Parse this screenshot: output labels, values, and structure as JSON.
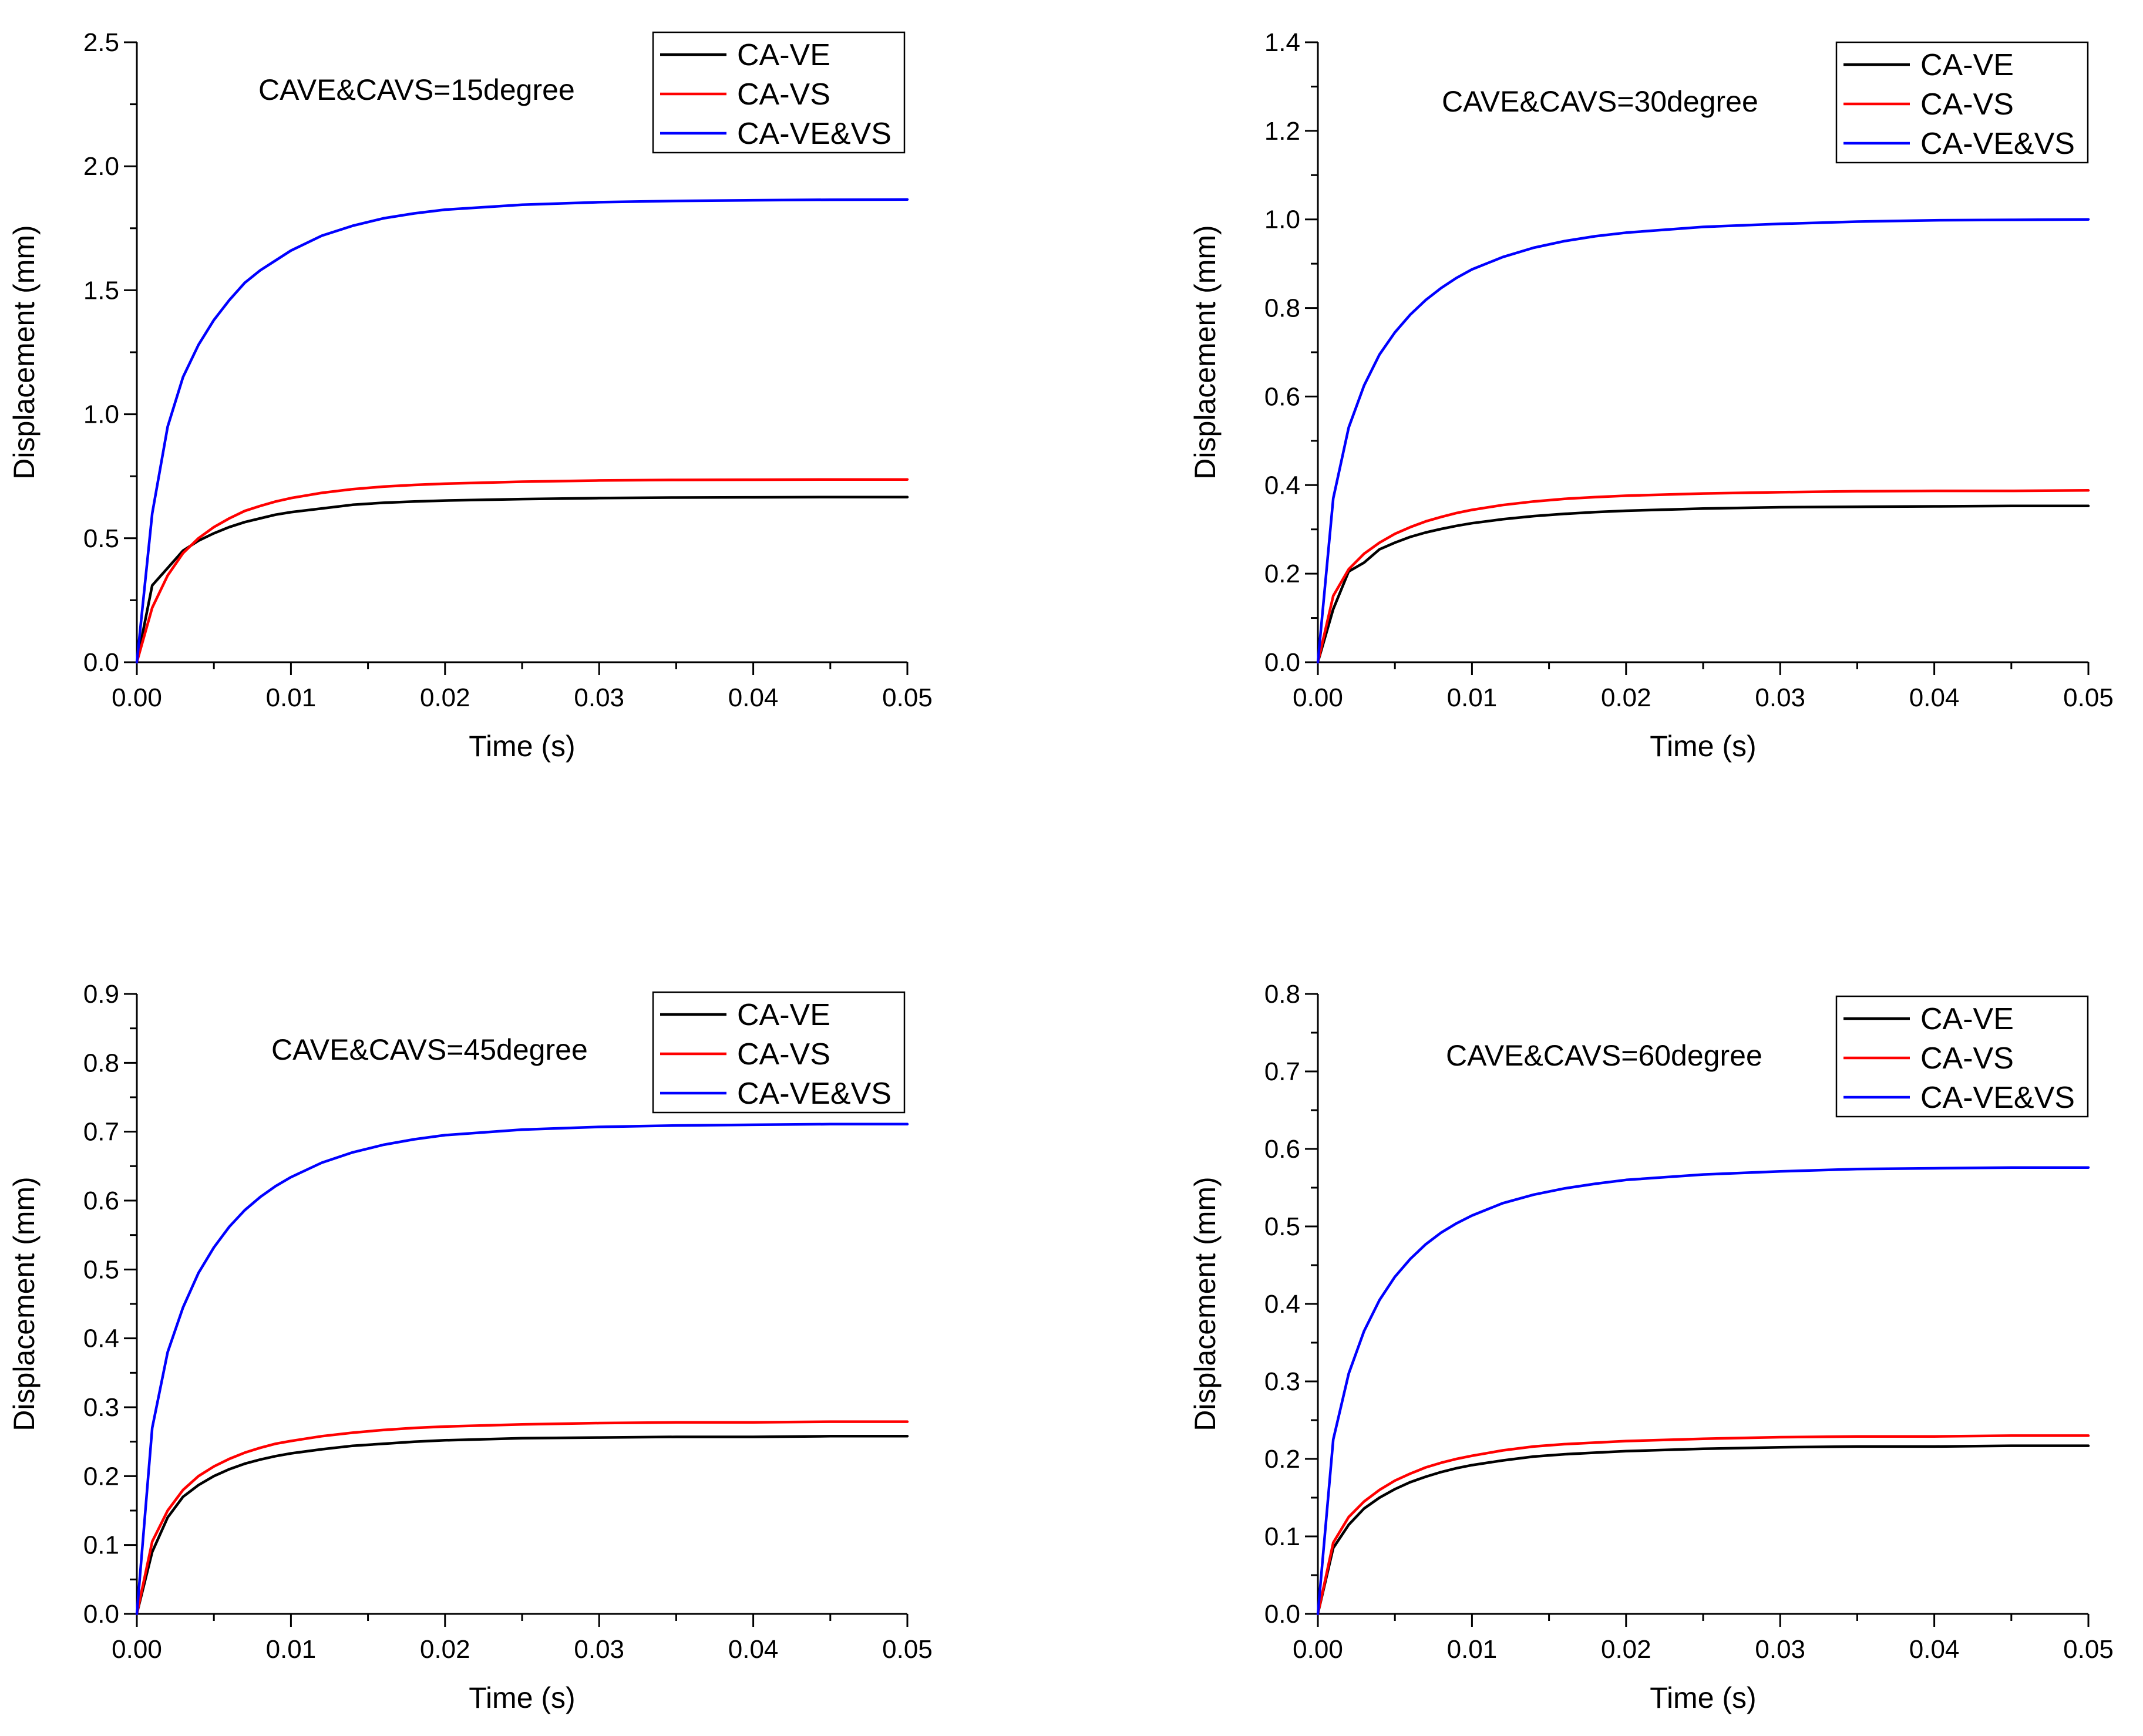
{
  "colors": {
    "CA-VE": "#000000",
    "CA-VS": "#ff0000",
    "CA-VE&VS": "#0000ff"
  },
  "chart_data": [
    {
      "type": "line",
      "title": "",
      "annotation": "CAVE&CAVS=15degree",
      "xlabel": "Time (s)",
      "ylabel": "Displacement (mm)",
      "xlim": [
        0,
        0.05
      ],
      "ylim": [
        0,
        2.5
      ],
      "xticks": [
        "0.00",
        "0.01",
        "0.02",
        "0.03",
        "0.04",
        "0.05"
      ],
      "yticks": [
        "0.0",
        "0.5",
        "1.0",
        "1.5",
        "2.0",
        "2.5"
      ],
      "legend_position": "top-right",
      "x": [
        0,
        0.001,
        0.002,
        0.003,
        0.004,
        0.005,
        0.006,
        0.007,
        0.008,
        0.009,
        0.01,
        0.012,
        0.014,
        0.016,
        0.018,
        0.02,
        0.025,
        0.03,
        0.035,
        0.04,
        0.045,
        0.05
      ],
      "series": [
        {
          "name": "CA-VE",
          "values": [
            0,
            0.31,
            0.38,
            0.45,
            0.49,
            0.52,
            0.545,
            0.565,
            0.58,
            0.595,
            0.605,
            0.62,
            0.635,
            0.643,
            0.648,
            0.652,
            0.658,
            0.662,
            0.664,
            0.665,
            0.666,
            0.666
          ]
        },
        {
          "name": "CA-VS",
          "values": [
            0,
            0.22,
            0.35,
            0.44,
            0.5,
            0.545,
            0.58,
            0.61,
            0.63,
            0.648,
            0.662,
            0.683,
            0.698,
            0.708,
            0.715,
            0.72,
            0.728,
            0.733,
            0.735,
            0.736,
            0.737,
            0.737
          ]
        },
        {
          "name": "CA-VE&VS",
          "values": [
            0,
            0.6,
            0.95,
            1.15,
            1.28,
            1.38,
            1.46,
            1.53,
            1.58,
            1.62,
            1.66,
            1.72,
            1.76,
            1.79,
            1.81,
            1.825,
            1.845,
            1.855,
            1.86,
            1.863,
            1.865,
            1.866
          ]
        }
      ]
    },
    {
      "type": "line",
      "title": "",
      "annotation": "CAVE&CAVS=30degree",
      "xlabel": "Time (s)",
      "ylabel": "Displacement (mm)",
      "xlim": [
        0,
        0.05
      ],
      "ylim": [
        0,
        1.4
      ],
      "xticks": [
        "0.00",
        "0.01",
        "0.02",
        "0.03",
        "0.04",
        "0.05"
      ],
      "yticks": [
        "0.0",
        "0.2",
        "0.4",
        "0.6",
        "0.8",
        "1.0",
        "1.2",
        "1.4"
      ],
      "legend_position": "top-right",
      "x": [
        0,
        0.001,
        0.002,
        0.003,
        0.004,
        0.005,
        0.006,
        0.007,
        0.008,
        0.009,
        0.01,
        0.012,
        0.014,
        0.016,
        0.018,
        0.02,
        0.025,
        0.03,
        0.035,
        0.04,
        0.045,
        0.05
      ],
      "series": [
        {
          "name": "CA-VE",
          "values": [
            0,
            0.12,
            0.205,
            0.225,
            0.255,
            0.27,
            0.283,
            0.293,
            0.301,
            0.308,
            0.314,
            0.323,
            0.33,
            0.335,
            0.339,
            0.342,
            0.347,
            0.35,
            0.351,
            0.352,
            0.353,
            0.353
          ]
        },
        {
          "name": "CA-VS",
          "values": [
            0,
            0.15,
            0.21,
            0.245,
            0.27,
            0.29,
            0.305,
            0.318,
            0.328,
            0.337,
            0.344,
            0.355,
            0.363,
            0.369,
            0.373,
            0.376,
            0.381,
            0.384,
            0.386,
            0.387,
            0.387,
            0.388
          ]
        },
        {
          "name": "CA-VE&VS",
          "values": [
            0,
            0.37,
            0.53,
            0.625,
            0.695,
            0.745,
            0.785,
            0.818,
            0.845,
            0.868,
            0.887,
            0.915,
            0.936,
            0.951,
            0.962,
            0.97,
            0.983,
            0.99,
            0.995,
            0.998,
            0.999,
            1.0
          ]
        }
      ]
    },
    {
      "type": "line",
      "title": "",
      "annotation": "CAVE&CAVS=45degree",
      "xlabel": "Time (s)",
      "ylabel": "Displacement (mm)",
      "xlim": [
        0,
        0.05
      ],
      "ylim": [
        0,
        0.9
      ],
      "xticks": [
        "0.00",
        "0.01",
        "0.02",
        "0.03",
        "0.04",
        "0.05"
      ],
      "yticks": [
        "0.0",
        "0.1",
        "0.2",
        "0.3",
        "0.4",
        "0.5",
        "0.6",
        "0.7",
        "0.8",
        "0.9"
      ],
      "legend_position": "top-right",
      "x": [
        0,
        0.001,
        0.002,
        0.003,
        0.004,
        0.005,
        0.006,
        0.007,
        0.008,
        0.009,
        0.01,
        0.012,
        0.014,
        0.016,
        0.018,
        0.02,
        0.025,
        0.03,
        0.035,
        0.04,
        0.045,
        0.05
      ],
      "series": [
        {
          "name": "CA-VE",
          "values": [
            0,
            0.09,
            0.14,
            0.17,
            0.187,
            0.2,
            0.21,
            0.218,
            0.224,
            0.229,
            0.233,
            0.239,
            0.244,
            0.247,
            0.25,
            0.252,
            0.255,
            0.256,
            0.257,
            0.257,
            0.258,
            0.258
          ]
        },
        {
          "name": "CA-VS",
          "values": [
            0,
            0.105,
            0.15,
            0.18,
            0.2,
            0.214,
            0.225,
            0.234,
            0.241,
            0.247,
            0.251,
            0.258,
            0.263,
            0.267,
            0.27,
            0.272,
            0.275,
            0.277,
            0.278,
            0.278,
            0.279,
            0.279
          ]
        },
        {
          "name": "CA-VE&VS",
          "values": [
            0,
            0.27,
            0.38,
            0.445,
            0.495,
            0.532,
            0.562,
            0.586,
            0.605,
            0.621,
            0.634,
            0.655,
            0.67,
            0.681,
            0.689,
            0.695,
            0.703,
            0.707,
            0.709,
            0.71,
            0.711,
            0.711
          ]
        }
      ]
    },
    {
      "type": "line",
      "title": "",
      "annotation": "CAVE&CAVS=60degree",
      "xlabel": "Time (s)",
      "ylabel": "Displacement (mm)",
      "xlim": [
        0,
        0.05
      ],
      "ylim": [
        0,
        0.8
      ],
      "xticks": [
        "0.00",
        "0.01",
        "0.02",
        "0.03",
        "0.04",
        "0.05"
      ],
      "yticks": [
        "0.0",
        "0.1",
        "0.2",
        "0.3",
        "0.4",
        "0.5",
        "0.6",
        "0.7",
        "0.8"
      ],
      "legend_position": "top-right",
      "x": [
        0,
        0.001,
        0.002,
        0.003,
        0.004,
        0.005,
        0.006,
        0.007,
        0.008,
        0.009,
        0.01,
        0.012,
        0.014,
        0.016,
        0.018,
        0.02,
        0.025,
        0.03,
        0.035,
        0.04,
        0.045,
        0.05
      ],
      "series": [
        {
          "name": "CA-VE",
          "values": [
            0,
            0.085,
            0.115,
            0.136,
            0.15,
            0.161,
            0.17,
            0.177,
            0.183,
            0.188,
            0.192,
            0.198,
            0.203,
            0.206,
            0.208,
            0.21,
            0.213,
            0.215,
            0.216,
            0.216,
            0.217,
            0.217
          ]
        },
        {
          "name": "CA-VS",
          "values": [
            0,
            0.092,
            0.125,
            0.145,
            0.16,
            0.172,
            0.181,
            0.189,
            0.195,
            0.2,
            0.204,
            0.211,
            0.216,
            0.219,
            0.221,
            0.223,
            0.226,
            0.228,
            0.229,
            0.229,
            0.23,
            0.23
          ]
        },
        {
          "name": "CA-VE&VS",
          "values": [
            0,
            0.225,
            0.31,
            0.365,
            0.405,
            0.435,
            0.458,
            0.477,
            0.492,
            0.504,
            0.514,
            0.53,
            0.541,
            0.549,
            0.555,
            0.56,
            0.567,
            0.571,
            0.574,
            0.575,
            0.576,
            0.576
          ]
        }
      ]
    }
  ]
}
